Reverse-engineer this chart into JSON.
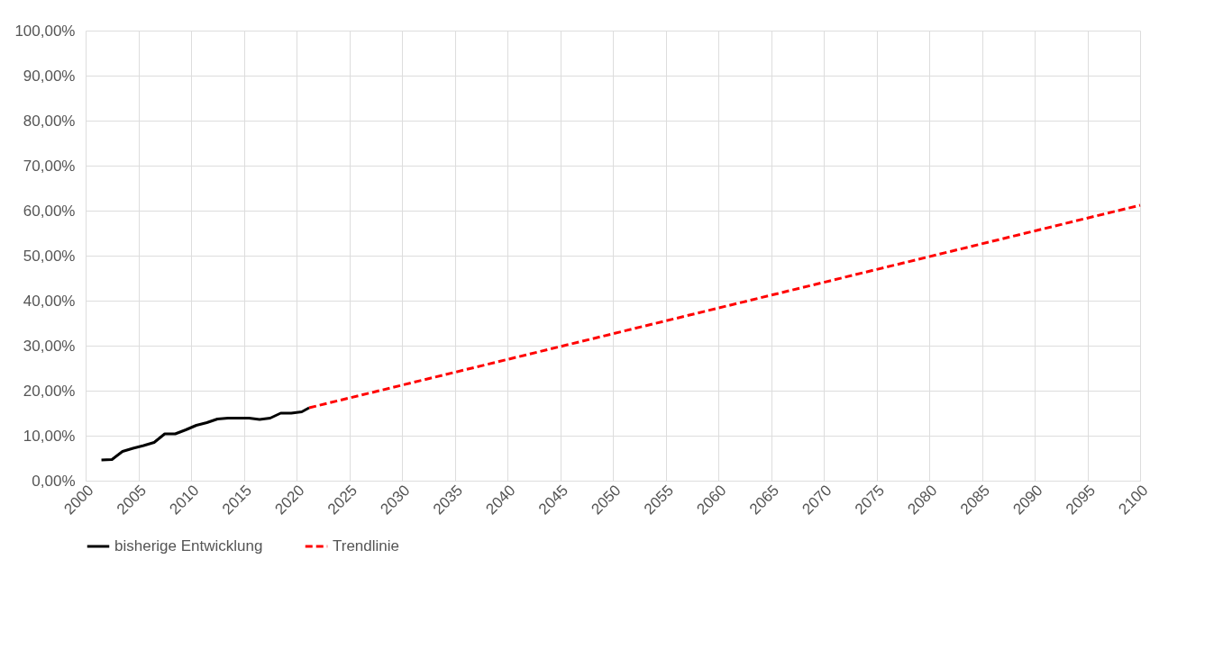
{
  "chart_data": {
    "type": "line",
    "xlim": [
      2000,
      2100
    ],
    "xticks": [
      2000,
      2005,
      2010,
      2015,
      2020,
      2025,
      2030,
      2035,
      2040,
      2045,
      2050,
      2055,
      2060,
      2065,
      2070,
      2075,
      2080,
      2085,
      2090,
      2095,
      2100
    ],
    "ylim": [
      0,
      100
    ],
    "yticks": [
      {
        "value": 0,
        "label": "0,00%"
      },
      {
        "value": 10,
        "label": "10,00%"
      },
      {
        "value": 20,
        "label": "20,00%"
      },
      {
        "value": 30,
        "label": "30,00%"
      },
      {
        "value": 40,
        "label": "40,00%"
      },
      {
        "value": 50,
        "label": "50,00%"
      },
      {
        "value": 60,
        "label": "60,00%"
      },
      {
        "value": 70,
        "label": "70,00%"
      },
      {
        "value": 80,
        "label": "80,00%"
      },
      {
        "value": 90,
        "label": "90,00%"
      },
      {
        "value": 100,
        "label": "100,00%"
      }
    ],
    "grid": true,
    "legend": "bottom",
    "marker": "none",
    "series": [
      {
        "name": "bisherige Entwicklung",
        "color": "#000000",
        "line_style": "solid",
        "x": [
          2001.5,
          2002.5,
          2003.5,
          2004.5,
          2005.5,
          2006.5,
          2007.5,
          2008.5,
          2009.5,
          2010.5,
          2011.5,
          2012.5,
          2013.5,
          2014.5,
          2015.5,
          2016.5,
          2017.5,
          2018.5,
          2019.5,
          2020.5,
          2021.2
        ],
        "values": [
          4.6,
          4.7,
          6.5,
          7.2,
          7.8,
          8.5,
          10.4,
          10.4,
          11.3,
          12.3,
          12.9,
          13.7,
          13.9,
          13.9,
          13.9,
          13.6,
          13.9,
          15.0,
          15.0,
          15.3,
          16.2
        ]
      },
      {
        "name": "Trendlinie",
        "color": "#ff0000",
        "line_style": "dashed",
        "x": [
          2021.2,
          2100
        ],
        "values": [
          16.2,
          61.2
        ]
      }
    ]
  }
}
